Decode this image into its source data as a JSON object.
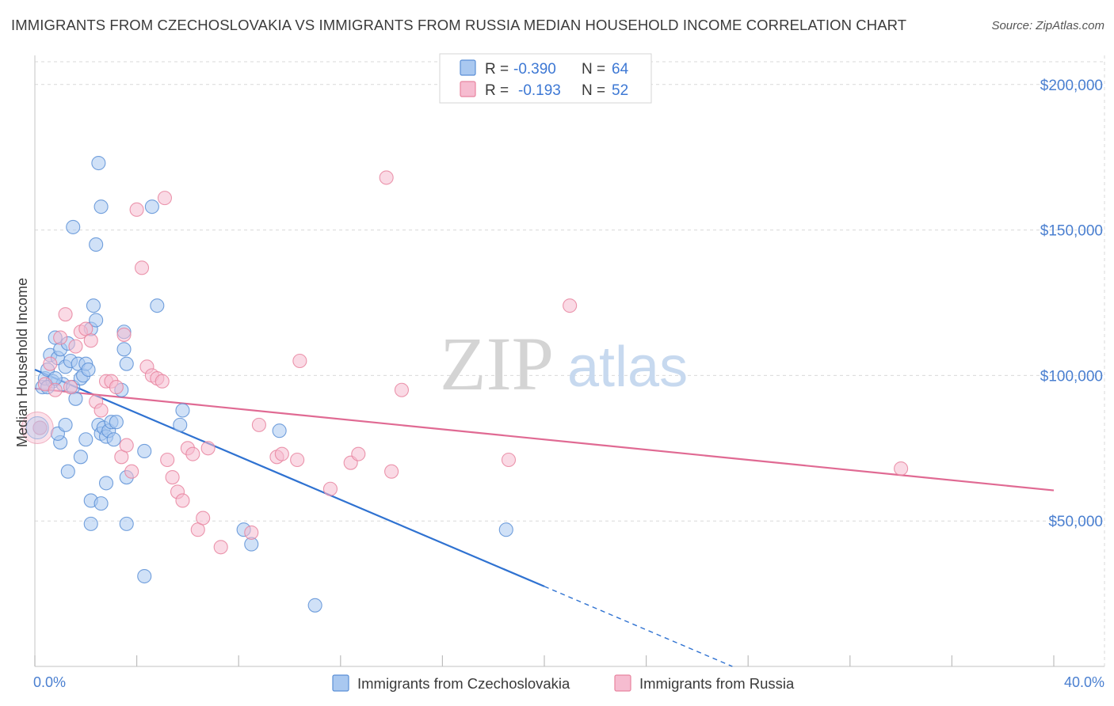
{
  "title": "IMMIGRANTS FROM CZECHOSLOVAKIA VS IMMIGRANTS FROM RUSSIA MEDIAN HOUSEHOLD INCOME CORRELATION CHART",
  "source": "Source: ZipAtlas.com",
  "watermark": {
    "zip": "ZIP",
    "atlas": "atlas"
  },
  "colors": {
    "blue_fill": "#a9c8f0",
    "blue_stroke": "#5b8fd6",
    "blue_line": "#2f72d1",
    "pink_fill": "#f6bcd0",
    "pink_stroke": "#e8849f",
    "pink_line": "#e06a93",
    "grid": "#d9d9d9",
    "tick_text": "#4a7fd0"
  },
  "legend": {
    "rows": [
      {
        "r_label": "R =",
        "r_value": "-0.390",
        "n_label": "N =",
        "n_value": "64"
      },
      {
        "r_label": "R =",
        "r_value": "-0.193",
        "n_label": "N =",
        "n_value": "52"
      }
    ]
  },
  "chart_data": {
    "type": "scatter",
    "title": "IMMIGRANTS FROM CZECHOSLOVAKIA VS IMMIGRANTS FROM RUSSIA MEDIAN HOUSEHOLD INCOME CORRELATION CHART",
    "xlabel": "",
    "ylabel": "Median Household Income",
    "xlim": [
      0,
      40
    ],
    "ylim": [
      0,
      210000
    ],
    "x_tick_labels": [
      "0.0%",
      "40.0%"
    ],
    "y_ticks": [
      50000,
      100000,
      150000,
      200000
    ],
    "y_tick_labels": [
      "$50,000",
      "$100,000",
      "$150,000",
      "$200,000"
    ],
    "series": [
      {
        "name": "Immigrants from Czechoslovakia",
        "color": "blue",
        "trend": {
          "x0": 0,
          "y0": 102000,
          "x1": 20,
          "y1": 27500,
          "dash_to_x": 40
        },
        "points": [
          [
            0.3,
            96000
          ],
          [
            0.4,
            99000
          ],
          [
            0.5,
            102000
          ],
          [
            0.6,
            107000
          ],
          [
            0.7,
            98000
          ],
          [
            0.8,
            113000
          ],
          [
            0.9,
            106000
          ],
          [
            1.0,
            109000
          ],
          [
            1.1,
            97000
          ],
          [
            1.2,
            103000
          ],
          [
            1.3,
            111000
          ],
          [
            1.4,
            105000
          ],
          [
            1.5,
            96000
          ],
          [
            1.6,
            92000
          ],
          [
            1.7,
            104000
          ],
          [
            1.8,
            99000
          ],
          [
            1.9,
            100000
          ],
          [
            2.0,
            104000
          ],
          [
            2.1,
            102000
          ],
          [
            2.2,
            116000
          ],
          [
            2.3,
            124000
          ],
          [
            2.5,
            83000
          ],
          [
            2.6,
            80000
          ],
          [
            2.7,
            82000
          ],
          [
            2.8,
            79000
          ],
          [
            2.9,
            81000
          ],
          [
            3.0,
            84000
          ],
          [
            3.1,
            78000
          ],
          [
            3.2,
            84000
          ],
          [
            3.4,
            95000
          ],
          [
            2.0,
            78000
          ],
          [
            1.0,
            77000
          ],
          [
            0.9,
            80000
          ],
          [
            1.2,
            83000
          ],
          [
            1.3,
            67000
          ],
          [
            1.8,
            72000
          ],
          [
            2.4,
            145000
          ],
          [
            1.5,
            151000
          ],
          [
            2.5,
            173000
          ],
          [
            2.6,
            158000
          ],
          [
            2.4,
            119000
          ],
          [
            3.5,
            109000
          ],
          [
            3.6,
            104000
          ],
          [
            3.5,
            115000
          ],
          [
            4.3,
            74000
          ],
          [
            4.6,
            158000
          ],
          [
            5.8,
            88000
          ],
          [
            5.7,
            83000
          ],
          [
            4.8,
            124000
          ],
          [
            3.6,
            65000
          ],
          [
            2.8,
            63000
          ],
          [
            2.2,
            57000
          ],
          [
            2.6,
            56000
          ],
          [
            2.2,
            49000
          ],
          [
            3.6,
            49000
          ],
          [
            4.3,
            31000
          ],
          [
            8.2,
            47000
          ],
          [
            8.5,
            42000
          ],
          [
            9.6,
            81000
          ],
          [
            11.0,
            21000
          ],
          [
            18.5,
            47000
          ],
          [
            0.2,
            82000
          ],
          [
            0.5,
            96000
          ],
          [
            0.8,
            99000
          ]
        ]
      },
      {
        "name": "Immigrants from Russia",
        "color": "pink",
        "trend": {
          "x0": 0,
          "y0": 95500,
          "x1": 40,
          "y1": 60500
        },
        "points": [
          [
            0.2,
            82000
          ],
          [
            0.4,
            97000
          ],
          [
            0.6,
            104000
          ],
          [
            0.8,
            95000
          ],
          [
            1.0,
            113000
          ],
          [
            1.2,
            121000
          ],
          [
            1.4,
            96000
          ],
          [
            1.6,
            110000
          ],
          [
            1.8,
            115000
          ],
          [
            2.0,
            116000
          ],
          [
            2.2,
            112000
          ],
          [
            2.4,
            91000
          ],
          [
            2.6,
            88000
          ],
          [
            2.8,
            98000
          ],
          [
            3.0,
            98000
          ],
          [
            3.2,
            96000
          ],
          [
            3.4,
            72000
          ],
          [
            3.6,
            76000
          ],
          [
            3.8,
            67000
          ],
          [
            4.0,
            157000
          ],
          [
            4.2,
            137000
          ],
          [
            4.4,
            103000
          ],
          [
            4.6,
            100000
          ],
          [
            4.8,
            99000
          ],
          [
            5.0,
            98000
          ],
          [
            5.2,
            71000
          ],
          [
            5.4,
            65000
          ],
          [
            5.6,
            60000
          ],
          [
            5.8,
            57000
          ],
          [
            6.0,
            75000
          ],
          [
            6.2,
            73000
          ],
          [
            6.4,
            47000
          ],
          [
            6.6,
            51000
          ],
          [
            6.8,
            75000
          ],
          [
            7.3,
            41000
          ],
          [
            8.5,
            46000
          ],
          [
            8.8,
            83000
          ],
          [
            9.5,
            72000
          ],
          [
            9.7,
            73000
          ],
          [
            10.3,
            71000
          ],
          [
            10.4,
            105000
          ],
          [
            11.6,
            61000
          ],
          [
            12.4,
            70000
          ],
          [
            12.7,
            73000
          ],
          [
            13.8,
            168000
          ],
          [
            14.0,
            67000
          ],
          [
            14.4,
            95000
          ],
          [
            18.6,
            71000
          ],
          [
            21.0,
            124000
          ],
          [
            34.0,
            68000
          ],
          [
            5.1,
            161000
          ],
          [
            3.5,
            114000
          ]
        ]
      }
    ]
  },
  "bottom_legend": [
    {
      "label": "Immigrants from Czechoslovakia",
      "color": "blue"
    },
    {
      "label": "Immigrants from Russia",
      "color": "pink"
    }
  ]
}
